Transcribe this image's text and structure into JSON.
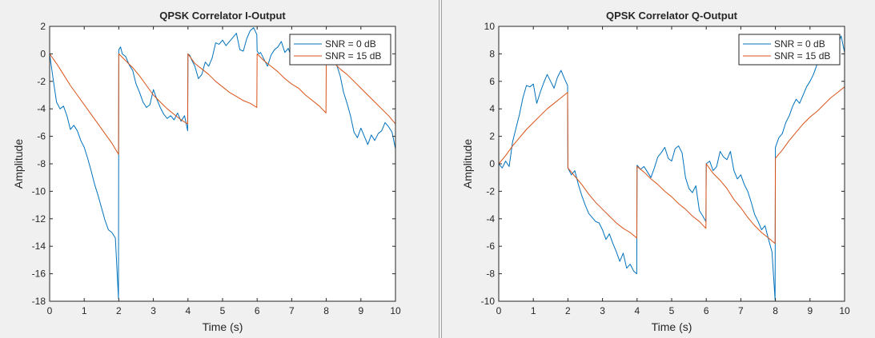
{
  "chart_data": [
    {
      "type": "line",
      "title": "QPSK Correlator I-Output",
      "xlabel": "Time (s)",
      "ylabel": "Amplitude",
      "xlim": [
        0,
        10
      ],
      "ylim": [
        -18,
        2
      ],
      "xticks": [
        0,
        1,
        2,
        3,
        4,
        5,
        6,
        7,
        8,
        9,
        10
      ],
      "yticks": [
        2,
        0,
        -2,
        -4,
        -6,
        -8,
        -10,
        -12,
        -14,
        -16,
        -18
      ],
      "grid": false,
      "legend_position": "top-right",
      "series": [
        {
          "name": "SNR = 0 dB",
          "color": "#0072bd",
          "x": [
            0,
            0.1,
            0.2,
            0.3,
            0.4,
            0.5,
            0.6,
            0.7,
            0.8,
            0.9,
            1.0,
            1.1,
            1.2,
            1.3,
            1.4,
            1.5,
            1.6,
            1.7,
            1.8,
            1.9,
            1.99,
            2.0,
            2.05,
            2.1,
            2.2,
            2.3,
            2.4,
            2.5,
            2.6,
            2.7,
            2.8,
            2.9,
            3.0,
            3.1,
            3.2,
            3.3,
            3.4,
            3.5,
            3.6,
            3.7,
            3.8,
            3.9,
            3.99,
            4.0,
            4.05,
            4.1,
            4.2,
            4.3,
            4.4,
            4.5,
            4.6,
            4.7,
            4.8,
            4.9,
            5.0,
            5.1,
            5.2,
            5.3,
            5.4,
            5.5,
            5.6,
            5.7,
            5.8,
            5.9,
            5.99,
            6.0,
            6.05,
            6.1,
            6.2,
            6.3,
            6.4,
            6.5,
            6.6,
            6.7,
            6.8,
            6.9,
            7.0,
            7.1,
            7.2,
            7.3,
            7.4,
            7.5,
            7.6,
            7.7,
            7.8,
            7.9,
            7.99,
            8.0,
            8.1,
            8.2,
            8.3,
            8.4,
            8.5,
            8.6,
            8.7,
            8.8,
            8.9,
            9.0,
            9.1,
            9.2,
            9.3,
            9.4,
            9.5,
            9.6,
            9.7,
            9.8,
            9.9,
            10.0
          ],
          "y": [
            0,
            -1.8,
            -3.5,
            -4.0,
            -3.8,
            -4.5,
            -5.5,
            -5.2,
            -5.6,
            -6.3,
            -6.8,
            -7.6,
            -8.5,
            -9.5,
            -10.3,
            -11.2,
            -12.1,
            -12.8,
            -13.0,
            -13.4,
            -17.8,
            0.3,
            0.5,
            0.0,
            -0.2,
            -0.8,
            -1.2,
            -2.2,
            -2.8,
            -3.5,
            -3.9,
            -3.7,
            -2.6,
            -3.3,
            -3.9,
            -4.4,
            -4.7,
            -4.5,
            -4.8,
            -4.3,
            -4.9,
            -4.5,
            -5.6,
            0,
            -0.1,
            -0.4,
            -0.9,
            -1.8,
            -1.5,
            -0.6,
            -0.9,
            -0.3,
            0.8,
            0.7,
            1.0,
            0.6,
            0.9,
            1.2,
            1.5,
            0.3,
            0.2,
            1.1,
            1.7,
            1.9,
            1.4,
            0.2,
            0.0,
            0.1,
            -0.4,
            -0.9,
            -0.1,
            0.3,
            0.5,
            0.9,
            0.1,
            0.4,
            -0.3,
            0.2,
            0.8,
            0.5,
            0.8,
            0.6,
            0.9,
            1.0,
            0.4,
            0.7,
            0.1,
            -0.1,
            0.3,
            -0.4,
            -0.8,
            -1.6,
            -2.8,
            -3.6,
            -4.5,
            -5.7,
            -6.1,
            -5.4,
            -6.0,
            -6.6,
            -5.9,
            -6.3,
            -5.8,
            -5.6,
            -5.0,
            -5.3,
            -5.7,
            -6.9
          ]
        },
        {
          "name": "SNR = 15 dB",
          "color": "#d95319",
          "x": [
            0,
            0.2,
            0.4,
            0.6,
            0.8,
            1.0,
            1.2,
            1.4,
            1.6,
            1.8,
            1.99,
            2.0,
            2.2,
            2.4,
            2.6,
            2.8,
            3.0,
            3.2,
            3.4,
            3.6,
            3.8,
            3.99,
            4.0,
            4.2,
            4.4,
            4.6,
            4.8,
            5.0,
            5.2,
            5.4,
            5.6,
            5.8,
            5.99,
            6.0,
            6.2,
            6.4,
            6.6,
            6.8,
            7.0,
            7.2,
            7.4,
            7.6,
            7.8,
            7.99,
            8.0,
            8.2,
            8.4,
            8.6,
            8.8,
            9.0,
            9.2,
            9.4,
            9.6,
            9.8,
            10.0
          ],
          "y": [
            0,
            -0.7,
            -1.5,
            -2.3,
            -3.0,
            -3.7,
            -4.4,
            -5.1,
            -5.8,
            -6.5,
            -7.3,
            0,
            -0.5,
            -1.0,
            -1.6,
            -2.3,
            -3.0,
            -3.5,
            -4.0,
            -4.4,
            -4.8,
            -5.1,
            0,
            -0.7,
            -1.1,
            -1.5,
            -2.0,
            -2.4,
            -2.8,
            -3.1,
            -3.4,
            -3.6,
            -3.9,
            0,
            -0.5,
            -0.9,
            -1.3,
            -1.8,
            -2.2,
            -2.5,
            -3.0,
            -3.4,
            -3.8,
            -4.3,
            0,
            -0.6,
            -1.1,
            -1.5,
            -2.0,
            -2.5,
            -3.0,
            -3.5,
            -4.0,
            -4.5,
            -5.1
          ]
        }
      ]
    },
    {
      "type": "line",
      "title": "QPSK Correlator Q-Output",
      "xlabel": "Time (s)",
      "ylabel": "Amplitude",
      "xlim": [
        0,
        10
      ],
      "ylim": [
        -10,
        10
      ],
      "xticks": [
        0,
        1,
        2,
        3,
        4,
        5,
        6,
        7,
        8,
        9,
        10
      ],
      "yticks": [
        10,
        8,
        6,
        4,
        2,
        0,
        -2,
        -4,
        -6,
        -8,
        -10
      ],
      "grid": false,
      "legend_position": "top-right",
      "series": [
        {
          "name": "SNR = 0 dB",
          "color": "#0072bd",
          "x": [
            0,
            0.1,
            0.2,
            0.3,
            0.4,
            0.5,
            0.6,
            0.7,
            0.8,
            0.9,
            1.0,
            1.1,
            1.2,
            1.3,
            1.4,
            1.5,
            1.6,
            1.7,
            1.8,
            1.9,
            1.99,
            2.0,
            2.1,
            2.2,
            2.3,
            2.4,
            2.5,
            2.6,
            2.7,
            2.8,
            2.9,
            3.0,
            3.1,
            3.2,
            3.3,
            3.4,
            3.5,
            3.6,
            3.7,
            3.8,
            3.9,
            3.99,
            4.0,
            4.1,
            4.2,
            4.3,
            4.4,
            4.5,
            4.6,
            4.7,
            4.8,
            4.9,
            5.0,
            5.1,
            5.2,
            5.3,
            5.4,
            5.5,
            5.6,
            5.7,
            5.8,
            5.9,
            5.99,
            6.0,
            6.1,
            6.2,
            6.3,
            6.4,
            6.5,
            6.6,
            6.7,
            6.8,
            6.9,
            7.0,
            7.1,
            7.2,
            7.3,
            7.4,
            7.5,
            7.6,
            7.7,
            7.8,
            7.9,
            7.99,
            8.0,
            8.1,
            8.2,
            8.3,
            8.4,
            8.5,
            8.6,
            8.7,
            8.8,
            8.9,
            9.0,
            9.1,
            9.2,
            9.3,
            9.4,
            9.5,
            9.6,
            9.7,
            9.8,
            9.9,
            10.0
          ],
          "y": [
            0,
            -0.3,
            0.2,
            -0.2,
            1.6,
            2.6,
            3.6,
            4.8,
            5.7,
            5.6,
            5.8,
            4.4,
            5.2,
            5.9,
            6.5,
            6.0,
            5.5,
            6.3,
            6.8,
            6.2,
            5.7,
            -0.3,
            -0.8,
            -0.5,
            -1.5,
            -2.3,
            -3.0,
            -3.6,
            -3.9,
            -4.2,
            -4.3,
            -4.8,
            -5.5,
            -5.1,
            -5.8,
            -6.4,
            -7.1,
            -6.5,
            -7.6,
            -7.3,
            -7.8,
            -8.0,
            -0.1,
            -0.4,
            -0.2,
            -0.6,
            -1.0,
            -0.3,
            0.5,
            0.8,
            1.2,
            0.4,
            0.2,
            1.1,
            1.3,
            0.8,
            -1.0,
            -1.8,
            -2.1,
            -1.6,
            -3.4,
            -3.8,
            -4.2,
            0.0,
            0.2,
            -0.5,
            -0.2,
            0.9,
            0.5,
            0.3,
            0.9,
            -0.5,
            -1.1,
            -0.8,
            -1.5,
            -2.0,
            -2.8,
            -3.7,
            -4.2,
            -4.8,
            -4.5,
            -5.5,
            -6.4,
            -9.9,
            1.2,
            1.9,
            2.2,
            3.0,
            3.5,
            4.2,
            4.7,
            4.4,
            5.0,
            5.6,
            6.0,
            6.5,
            7.2,
            8.2,
            8.6,
            8.8,
            9.3,
            9.0,
            8.6,
            9.3,
            8.1
          ]
        },
        {
          "name": "SNR = 15 dB",
          "color": "#d95319",
          "x": [
            0,
            0.2,
            0.4,
            0.6,
            0.8,
            1.0,
            1.2,
            1.4,
            1.6,
            1.8,
            1.99,
            2.0,
            2.2,
            2.4,
            2.6,
            2.8,
            3.0,
            3.2,
            3.4,
            3.6,
            3.8,
            3.99,
            4.0,
            4.2,
            4.4,
            4.6,
            4.8,
            5.0,
            5.2,
            5.4,
            5.6,
            5.8,
            5.99,
            6.0,
            6.2,
            6.4,
            6.6,
            6.8,
            7.0,
            7.2,
            7.4,
            7.6,
            7.8,
            7.99,
            8.0,
            8.2,
            8.4,
            8.6,
            8.8,
            9.0,
            9.2,
            9.4,
            9.6,
            9.8,
            10.0
          ],
          "y": [
            0,
            0.6,
            1.3,
            1.9,
            2.5,
            3.0,
            3.5,
            4.0,
            4.4,
            4.8,
            5.2,
            -0.3,
            -0.9,
            -1.5,
            -2.2,
            -2.8,
            -3.3,
            -3.8,
            -4.3,
            -4.7,
            -5.0,
            -5.4,
            -0.2,
            -0.6,
            -1.1,
            -1.5,
            -2.0,
            -2.4,
            -2.9,
            -3.3,
            -3.8,
            -4.2,
            -4.7,
            0.0,
            -0.7,
            -1.2,
            -1.8,
            -2.6,
            -3.2,
            -3.9,
            -4.5,
            -5.0,
            -5.4,
            -5.8,
            0.4,
            1.0,
            1.7,
            2.3,
            2.9,
            3.4,
            3.8,
            4.3,
            4.8,
            5.2,
            5.6
          ]
        }
      ]
    }
  ]
}
